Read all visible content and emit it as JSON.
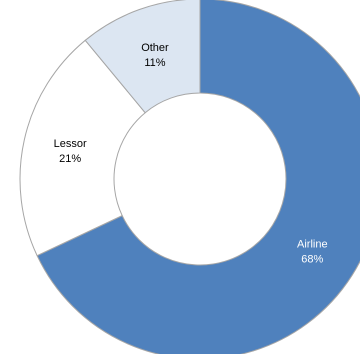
{
  "chart_data": {
    "type": "pie",
    "title": "",
    "categories": [
      "Airline",
      "Lessor",
      "Other"
    ],
    "values": [
      68,
      21,
      11
    ],
    "value_labels": [
      "68%",
      "21%",
      "11%"
    ],
    "colors": [
      "#4f81bd",
      "#ffffff",
      "#dce6f2"
    ],
    "label_colors": [
      "#ffffff",
      "#000000",
      "#000000"
    ],
    "slice_border_color": "#a6a6a6",
    "donut": true,
    "legend": "none"
  }
}
